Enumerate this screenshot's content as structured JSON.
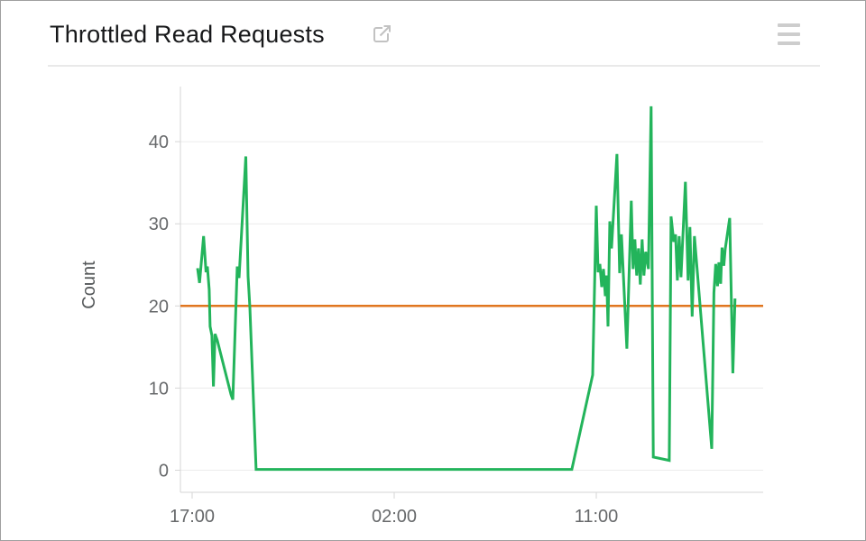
{
  "header": {
    "title": "Throttled Read Requests"
  },
  "chart_data": {
    "type": "line",
    "title": "Throttled Read Requests",
    "xlabel": "",
    "ylabel": "Count",
    "x_axis": {
      "unit": "hours-from-first-tick",
      "ticks": [
        {
          "hour": 0,
          "label": "17:00"
        },
        {
          "hour": 9,
          "label": "02:00"
        },
        {
          "hour": 18,
          "label": "11:00"
        }
      ],
      "visible_span_hours": [
        -0.52,
        25.43
      ],
      "grid": false
    },
    "y_axis": {
      "ticks": [
        0,
        10,
        20,
        30,
        40
      ],
      "range": [
        -2.7,
        46.5
      ],
      "grid": true
    },
    "legend": "none",
    "threshold": {
      "name": "threshold-20",
      "value": 20,
      "color": "#e0761f"
    },
    "series": [
      {
        "name": "Throttled Read Requests",
        "color": "#23b45b",
        "points": [
          [
            0.24,
            24.6
          ],
          [
            0.33,
            22.8
          ],
          [
            0.51,
            28.5
          ],
          [
            0.62,
            24.1
          ],
          [
            0.68,
            24.8
          ],
          [
            0.76,
            22.0
          ],
          [
            0.8,
            17.5
          ],
          [
            0.88,
            16.4
          ],
          [
            0.95,
            10.2
          ],
          [
            1.02,
            16.6
          ],
          [
            1.12,
            15.8
          ],
          [
            1.73,
            9.2
          ],
          [
            1.81,
            8.6
          ],
          [
            2.01,
            24.8
          ],
          [
            2.09,
            23.4
          ],
          [
            2.39,
            38.2
          ],
          [
            2.49,
            23.6
          ],
          [
            2.57,
            19.8
          ],
          [
            2.85,
            0.1
          ],
          [
            16.91,
            0.1
          ],
          [
            17.84,
            11.6
          ],
          [
            18.0,
            32.2
          ],
          [
            18.08,
            24.1
          ],
          [
            18.16,
            25.1
          ],
          [
            18.24,
            22.3
          ],
          [
            18.32,
            24.5
          ],
          [
            18.4,
            21.2
          ],
          [
            18.46,
            23.7
          ],
          [
            18.52,
            17.5
          ],
          [
            18.6,
            30.3
          ],
          [
            18.68,
            27.0
          ],
          [
            18.92,
            38.5
          ],
          [
            19.04,
            24.0
          ],
          [
            19.12,
            28.7
          ],
          [
            19.36,
            14.8
          ],
          [
            19.56,
            32.8
          ],
          [
            19.64,
            24.5
          ],
          [
            19.72,
            28.1
          ],
          [
            19.8,
            23.7
          ],
          [
            19.88,
            27.0
          ],
          [
            19.96,
            22.6
          ],
          [
            20.04,
            28.1
          ],
          [
            20.12,
            23.7
          ],
          [
            20.2,
            26.6
          ],
          [
            20.32,
            24.5
          ],
          [
            20.44,
            44.3
          ],
          [
            20.54,
            1.6
          ],
          [
            21.25,
            1.2
          ],
          [
            21.33,
            30.9
          ],
          [
            21.45,
            27.8
          ],
          [
            21.53,
            28.7
          ],
          [
            21.61,
            23.1
          ],
          [
            21.69,
            28.5
          ],
          [
            21.77,
            23.5
          ],
          [
            21.97,
            35.1
          ],
          [
            22.09,
            23.1
          ],
          [
            22.17,
            29.6
          ],
          [
            22.27,
            18.7
          ],
          [
            22.37,
            28.5
          ],
          [
            23.14,
            2.6
          ],
          [
            23.24,
            21.6
          ],
          [
            23.32,
            25.1
          ],
          [
            23.4,
            22.4
          ],
          [
            23.46,
            25.3
          ],
          [
            23.54,
            22.7
          ],
          [
            23.6,
            27.1
          ],
          [
            23.68,
            24.9
          ],
          [
            23.74,
            26.9
          ],
          [
            23.94,
            30.7
          ],
          [
            24.08,
            11.8
          ],
          [
            24.18,
            20.9
          ]
        ]
      }
    ],
    "style": {
      "grid_color": "#ececec",
      "axis_color": "#d6d6d6",
      "tick_label_color": "#67696b",
      "axis_title_color": "#55585a",
      "line_width": 3,
      "threshold_width": 2.5
    }
  },
  "colors": {
    "background": "#ffffff",
    "panel_border": "#9f9f9f",
    "divider": "#e9e9e9",
    "title_text": "#17181a",
    "external_link_icon": "#c2c2c2",
    "hamburger_icon": "#cdcdcd"
  }
}
